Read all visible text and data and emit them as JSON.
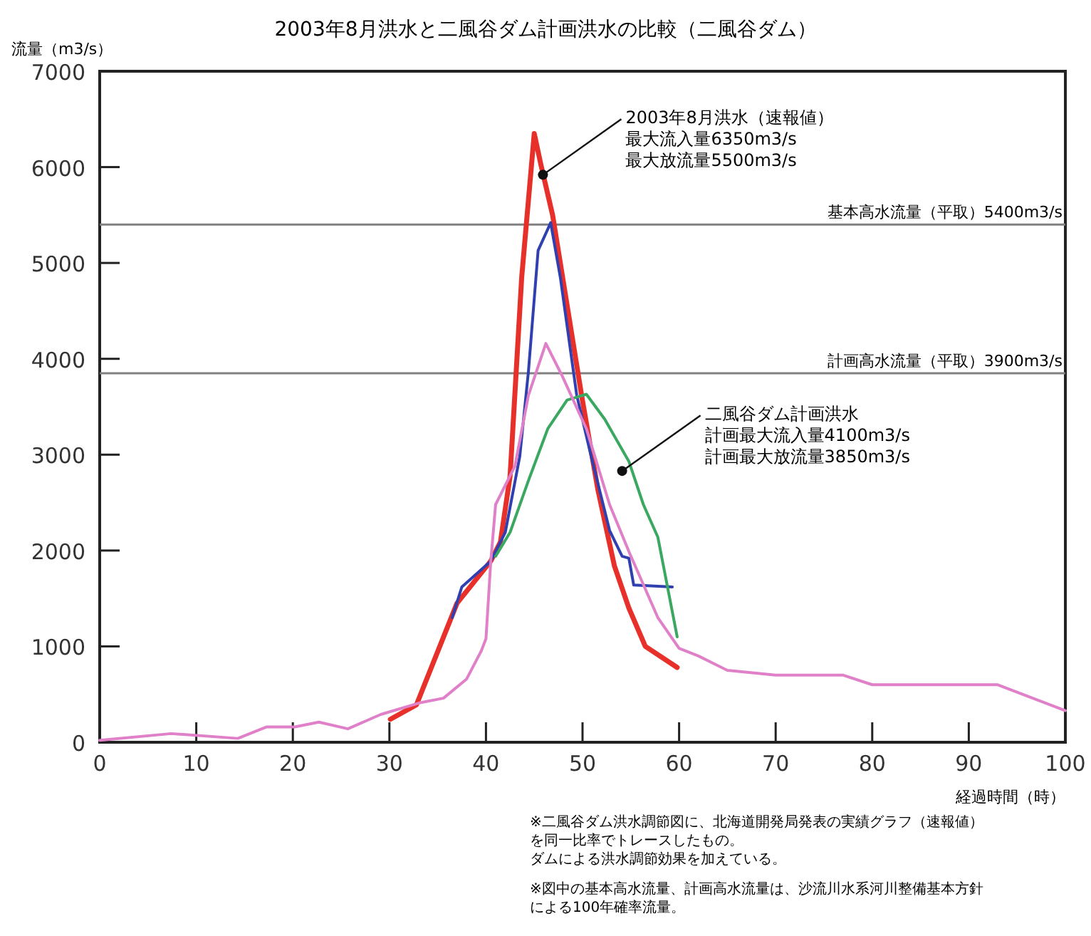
{
  "chart_data": {
    "type": "line",
    "title": "2003年8月洪水と二風谷ダム計画洪水の比較（二風谷ダム）",
    "ylabel": "流量（m3/s）",
    "xlabel": "経過時間（時）",
    "xlim": [
      0,
      100
    ],
    "xticks": [
      0,
      10,
      20,
      30,
      40,
      50,
      60,
      70,
      80,
      90,
      100
    ],
    "ylim": [
      0,
      7000
    ],
    "yticks": [
      0,
      1000,
      2000,
      3000,
      4000,
      5000,
      6000,
      7000
    ],
    "grid": false,
    "marker": "none",
    "line_style": "solid",
    "series": [
      {
        "color": "#e8302a",
        "x": [
          30.1,
          32.8,
          37.0,
          40.5,
          41.5,
          42.5,
          43.7,
          45.0,
          45.7,
          46.9,
          48.4,
          49.9,
          51.6,
          53.3,
          54.8,
          56.5,
          59.8
        ],
        "values": [
          240,
          390,
          1450,
          1890,
          2090,
          2780,
          4850,
          6350,
          6020,
          5500,
          4560,
          3620,
          2630,
          1840,
          1400,
          1000,
          780
        ]
      },
      {
        "color": "#3040b0",
        "x": [
          36.5,
          37.5,
          40.5,
          42.0,
          43.5,
          44.4,
          45.4,
          46.7,
          47.7,
          49.4,
          50.9,
          52.8,
          54.1,
          54.8,
          55.3,
          59.3
        ],
        "values": [
          1300,
          1620,
          1890,
          2190,
          2980,
          3870,
          5130,
          5420,
          4850,
          3620,
          2980,
          2210,
          1940,
          1920,
          1640,
          1620
        ]
      },
      {
        "color": "#3aa860",
        "x": [
          41.0,
          42.5,
          44.4,
          46.4,
          48.4,
          50.4,
          52.3,
          54.8,
          56.3,
          57.8,
          59.8
        ],
        "values": [
          1940,
          2190,
          2730,
          3270,
          3570,
          3630,
          3370,
          2930,
          2480,
          2140,
          1100
        ]
      },
      {
        "color": "#e080c8",
        "x": [
          0,
          7.4,
          14.3,
          17.3,
          20.2,
          22.7,
          25.7,
          29.1,
          33.1,
          35.6,
          38.0,
          39.5,
          40.0,
          40.5,
          41.0,
          43.0,
          44.4,
          46.2,
          47.9,
          50.4,
          52.8,
          54.8,
          57.8,
          60.0,
          62,
          65,
          70,
          77,
          80,
          93,
          100
        ],
        "values": [
          20,
          90,
          40,
          160,
          160,
          210,
          140,
          290,
          410,
          460,
          660,
          950,
          1080,
          1890,
          2480,
          2880,
          3620,
          4160,
          3820,
          3270,
          2480,
          1990,
          1300,
          980,
          900,
          750,
          700,
          700,
          600,
          600,
          330
        ]
      }
    ],
    "ref_lines": [
      {
        "axis": "y",
        "value": 5400,
        "label": "基本高水流量（平取）5400m3/s",
        "color": "#808080"
      },
      {
        "axis": "y",
        "value": 3850,
        "label": "計画高水流量（平取）3900m3/s",
        "color": "#808080"
      }
    ],
    "annotations": [
      "※二風谷ダム洪水調節図に、北海道開発局発表の実績グラフ（速報値）を同一比率でトレースしたもの。",
      "ダムによる洪水調節効果を加えている。",
      "※図中の基本高水流量、計画高水流量は、沙流川水系河川整備基本方針による100年確率流量。",
      {
        "text": "2003年8月洪水（速報値）",
        "x": 45.9,
        "y": 5920
      },
      "最大流入量6350m3/s",
      "最大放流量5500m3/s",
      {
        "text": "二風谷ダム計画洪水",
        "x": 54.1,
        "y": 2830
      },
      "計画最大流入量4100m3/s",
      "計画最大放流量3850m3/s"
    ]
  }
}
